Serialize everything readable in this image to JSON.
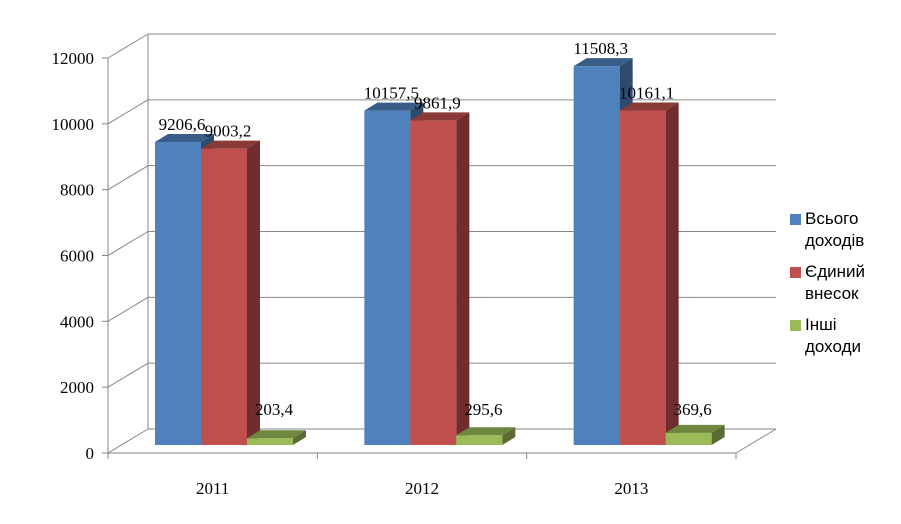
{
  "chart_data": {
    "type": "bar",
    "categories": [
      "2011",
      "2012",
      "2013"
    ],
    "series": [
      {
        "name": "Всього доходів",
        "color": "#4F81BD",
        "values": [
          9206.6,
          10157.5,
          11508.3
        ],
        "labels": [
          "9206,6",
          "10157,5",
          "11508,3"
        ]
      },
      {
        "name": "Єдиний внесок",
        "color": "#C0504D",
        "values": [
          9003.2,
          9861.9,
          10161.1
        ],
        "labels": [
          "9003,2",
          "9861,9",
          "10161,1"
        ]
      },
      {
        "name": "Інші доходи",
        "color": "#9BBB59",
        "values": [
          203.4,
          295.6,
          369.6
        ],
        "labels": [
          "203,4",
          "295,6",
          "369,6"
        ]
      }
    ],
    "ylim": [
      0,
      12000
    ],
    "yticks": [
      0,
      2000,
      4000,
      6000,
      8000,
      10000,
      12000
    ],
    "grid": true,
    "three_d": true,
    "legend_position": "right"
  }
}
